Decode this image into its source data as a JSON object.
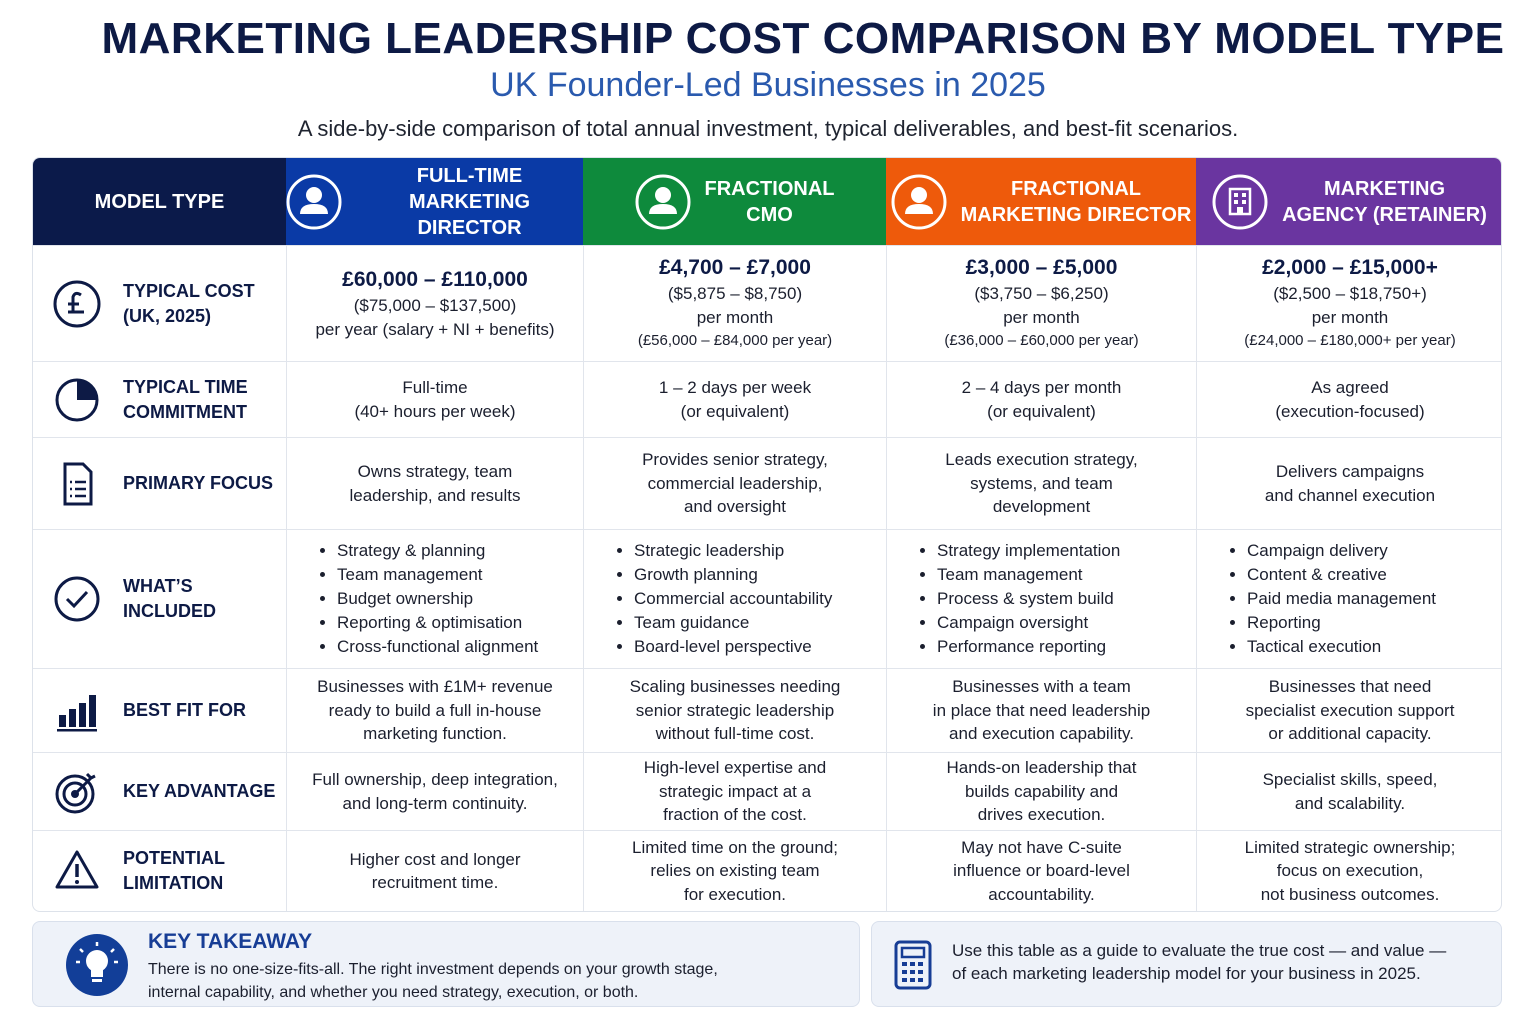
{
  "header": {
    "title": "MARKETING LEADERSHIP COST COMPARISON BY MODEL TYPE",
    "subtitle": "UK Founder-Led Businesses in 2025",
    "description": "A side-by-side comparison of total annual investment, typical deliverables, and best-fit scenarios."
  },
  "table": {
    "corner": "MODEL TYPE",
    "columns": [
      [
        "FULL-TIME",
        "MARKETING DIRECTOR"
      ],
      [
        "FRACTIONAL",
        "CMO"
      ],
      [
        "FRACTIONAL",
        "MARKETING DIRECTOR"
      ],
      [
        "MARKETING",
        "AGENCY (RETAINER)"
      ]
    ],
    "rows": [
      {
        "label": [
          "TYPICAL COST",
          "(UK, 2025)"
        ],
        "cells": [
          {
            "price": "£60,000 – £110,000",
            "usd": "($75,000 – $137,500)",
            "period": "per year (salary + NI + benefits)"
          },
          {
            "price": "£4,700 – £7,000",
            "usd": "($5,875 – $8,750)",
            "period": "per month",
            "annual": "(£56,000 – £84,000 per year)"
          },
          {
            "price": "£3,000 – £5,000",
            "usd": "($3,750 – $6,250)",
            "period": "per month",
            "annual": "(£36,000 – £60,000 per year)"
          },
          {
            "price": "£2,000 – £15,000+",
            "usd": "($2,500 – $18,750+)",
            "period": "per month",
            "annual": "(£24,000 – £180,000+ per year)"
          }
        ]
      },
      {
        "label": [
          "TYPICAL TIME",
          "COMMITMENT"
        ],
        "cells": [
          {
            "lines": [
              "Full-time",
              "(40+ hours per week)"
            ]
          },
          {
            "lines": [
              "1 – 2 days per week",
              "(or equivalent)"
            ]
          },
          {
            "lines": [
              "2 – 4 days per month",
              "(or equivalent)"
            ]
          },
          {
            "lines": [
              "As agreed",
              "(execution-focused)"
            ]
          }
        ]
      },
      {
        "label": [
          "PRIMARY FOCUS"
        ],
        "cells": [
          {
            "lines": [
              "Owns strategy, team",
              "leadership, and results"
            ]
          },
          {
            "lines": [
              "Provides senior strategy,",
              "commercial leadership,",
              "and oversight"
            ]
          },
          {
            "lines": [
              "Leads execution strategy,",
              "systems, and team",
              "development"
            ]
          },
          {
            "lines": [
              "Delivers campaigns",
              "and channel execution"
            ]
          }
        ]
      },
      {
        "label": [
          "WHAT’S INCLUDED"
        ],
        "cells": [
          {
            "bullets": [
              "Strategy & planning",
              "Team management",
              "Budget ownership",
              "Reporting & optimisation",
              "Cross-functional alignment"
            ]
          },
          {
            "bullets": [
              "Strategic leadership",
              "Growth planning",
              "Commercial accountability",
              "Team guidance",
              "Board-level perspective"
            ]
          },
          {
            "bullets": [
              "Strategy implementation",
              "Team management",
              "Process & system build",
              "Campaign oversight",
              "Performance reporting"
            ]
          },
          {
            "bullets": [
              "Campaign delivery",
              "Content & creative",
              "Paid media management",
              "Reporting",
              "Tactical execution"
            ]
          }
        ]
      },
      {
        "label": [
          "BEST FIT FOR"
        ],
        "cells": [
          {
            "lines": [
              "Businesses with £1M+ revenue",
              "ready to build a full in-house",
              "marketing function."
            ]
          },
          {
            "lines": [
              "Scaling businesses needing",
              "senior strategic leadership",
              "without full-time cost."
            ]
          },
          {
            "lines": [
              "Businesses with a team",
              "in place that need leadership",
              "and execution capability."
            ]
          },
          {
            "lines": [
              "Businesses that need",
              "specialist execution support",
              "or additional capacity."
            ]
          }
        ]
      },
      {
        "label": [
          "KEY ADVANTAGE"
        ],
        "cells": [
          {
            "lines": [
              "Full ownership, deep integration,",
              "and long-term continuity."
            ]
          },
          {
            "lines": [
              "High-level expertise and",
              "strategic impact at a",
              "fraction of the cost."
            ]
          },
          {
            "lines": [
              "Hands-on leadership that",
              "builds capability and",
              "drives execution."
            ]
          },
          {
            "lines": [
              "Specialist skills, speed,",
              "and scalability."
            ]
          }
        ]
      },
      {
        "label": [
          "POTENTIAL LIMITATION"
        ],
        "cells": [
          {
            "lines": [
              "Higher cost and longer",
              "recruitment time."
            ]
          },
          {
            "lines": [
              "Limited time on the ground;",
              "relies on existing team",
              "for execution."
            ]
          },
          {
            "lines": [
              "May not have C-suite",
              "influence or board-level",
              "accountability."
            ]
          },
          {
            "lines": [
              "Limited strategic ownership;",
              "focus on execution,",
              "not business outcomes."
            ]
          }
        ]
      }
    ]
  },
  "footer": {
    "takeaway_title": "KEY TAKEAWAY",
    "takeaway_lines": [
      "There is no one-size-fits-all. The right investment depends on your growth stage,",
      "internal capability, and whether you need strategy, execution, or both."
    ],
    "note_lines": [
      "Use this table as a guide to evaluate the true cost — and value —",
      "of each marketing leadership model for your business in 2025."
    ]
  }
}
